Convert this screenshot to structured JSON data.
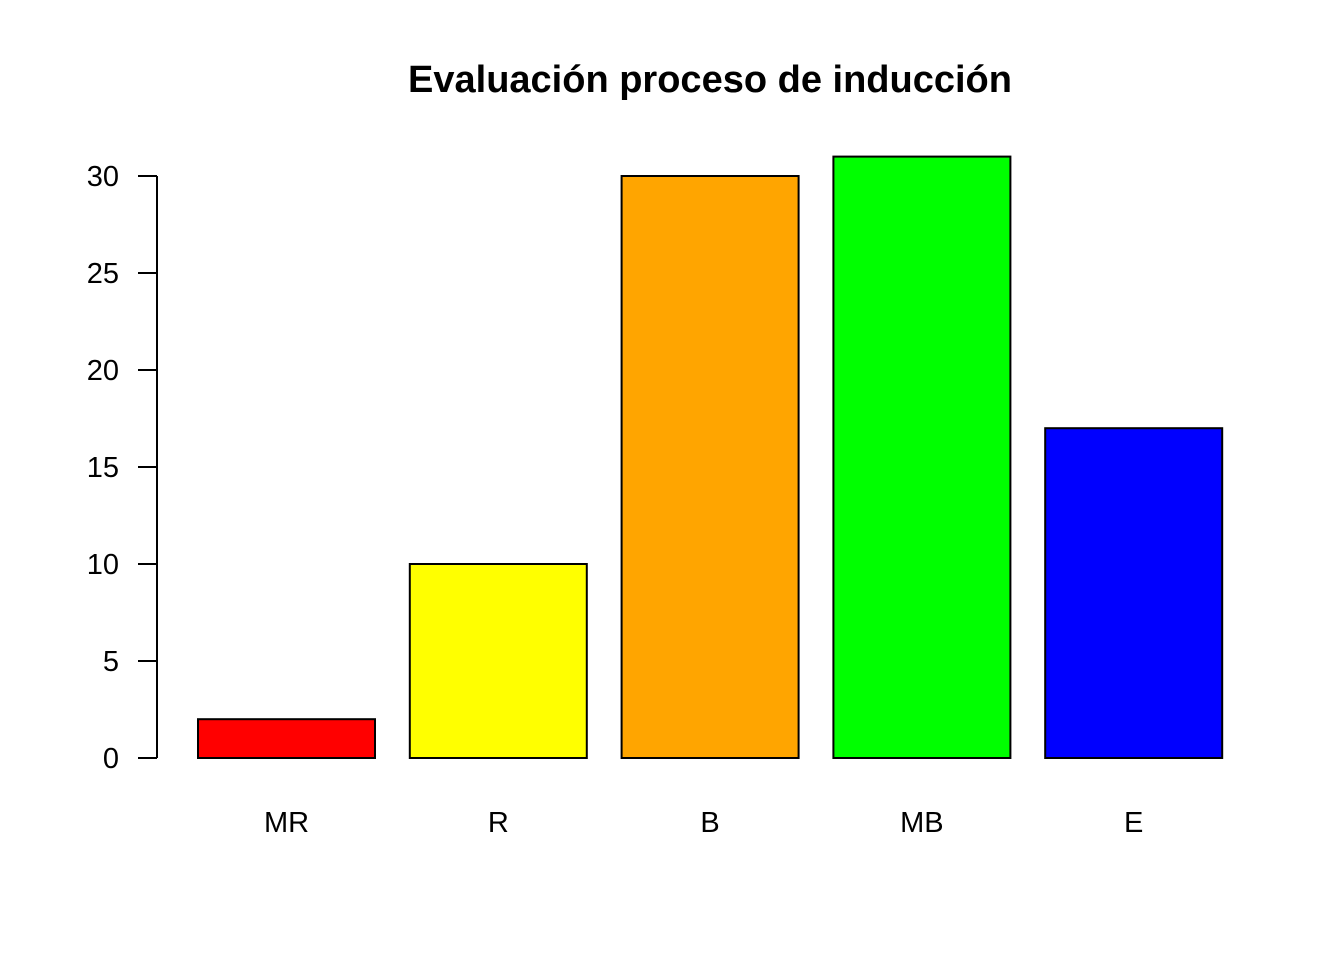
{
  "chart_data": {
    "type": "bar",
    "title": "Evaluación proceso de inducción",
    "xlabel": "",
    "ylabel": "",
    "categories": [
      "MR",
      "R",
      "B",
      "MB",
      "E"
    ],
    "values": [
      2,
      10,
      30,
      31,
      17
    ],
    "colors": [
      "#ff0000",
      "#ffff00",
      "#ffa500",
      "#00ff00",
      "#0000ff"
    ],
    "ylim": [
      0,
      31
    ],
    "yticks": [
      0,
      5,
      10,
      15,
      20,
      25,
      30
    ],
    "grid": false,
    "legend": "none"
  }
}
